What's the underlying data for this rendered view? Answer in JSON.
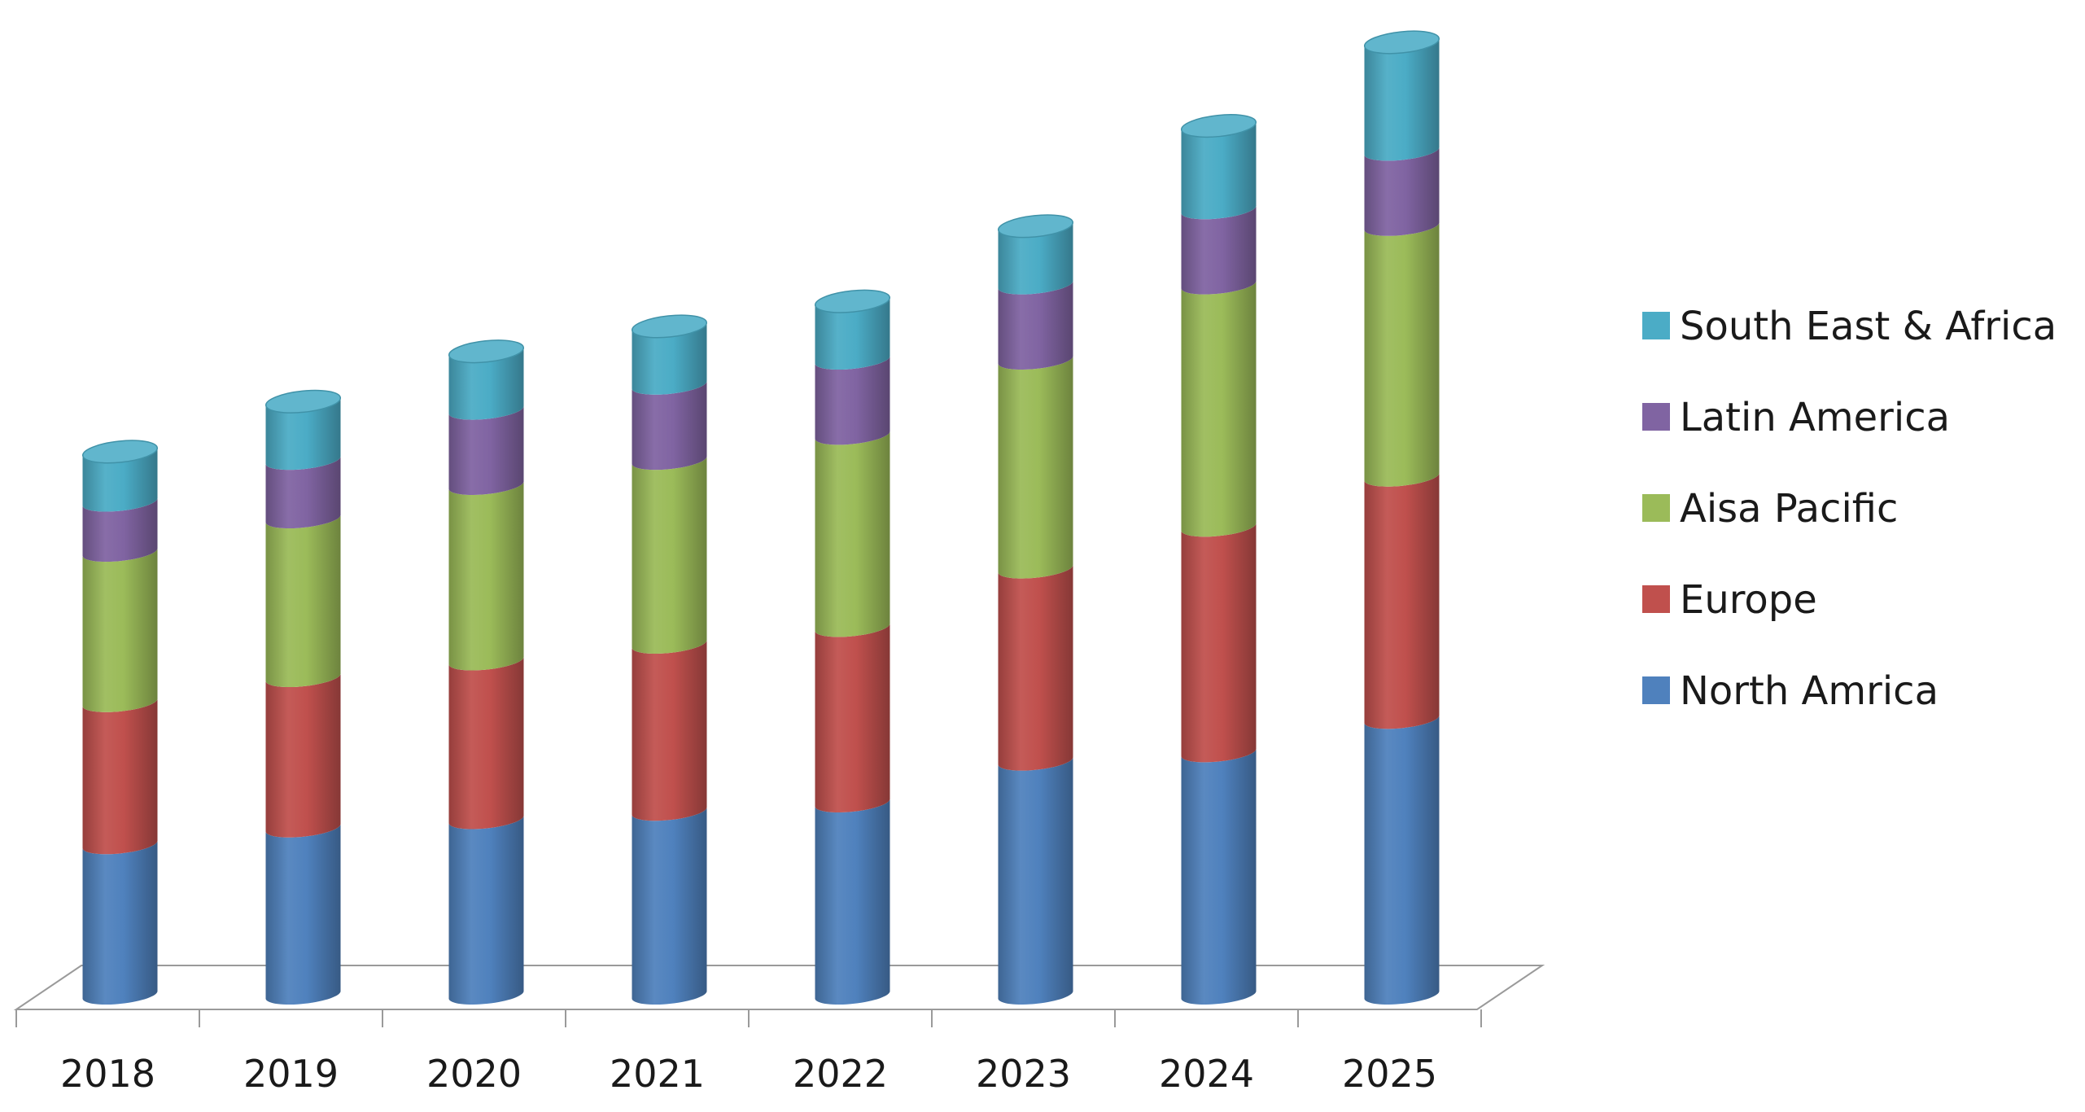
{
  "chart_data": {
    "type": "bar",
    "stacked": true,
    "style": "3d-cylinder",
    "categories": [
      "2018",
      "2019",
      "2020",
      "2021",
      "2022",
      "2023",
      "2024",
      "2025"
    ],
    "series": [
      {
        "name": "North Amrica",
        "color": "#4f81bd",
        "values": [
          18,
          20,
          21,
          22,
          23,
          28,
          29,
          33
        ]
      },
      {
        "name": "Europe",
        "color": "#c0504d",
        "values": [
          17,
          18,
          19,
          20,
          21,
          23,
          27,
          29
        ]
      },
      {
        "name": "Aisa Pacific",
        "color": "#9bbb59",
        "values": [
          18,
          19,
          21,
          22,
          23,
          25,
          29,
          30
        ]
      },
      {
        "name": "Latin America",
        "color": "#8064a2",
        "values": [
          6,
          7,
          9,
          9,
          9,
          9,
          9,
          9
        ]
      },
      {
        "name": "South East & Africa",
        "color": "#4bacc6",
        "values": [
          6,
          7,
          7,
          7,
          7,
          7,
          10,
          13
        ]
      }
    ],
    "title": "",
    "xlabel": "",
    "ylabel": "",
    "ylim": [
      0,
      114
    ],
    "grid": false,
    "legend": "right"
  }
}
